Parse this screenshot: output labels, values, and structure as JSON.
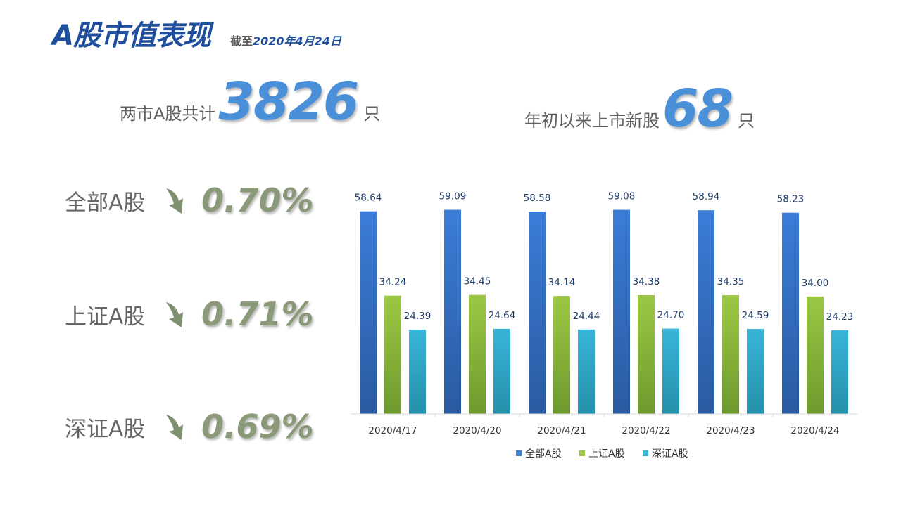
{
  "header": {
    "title": "A股市值表现",
    "subtitle_prefix": "截至",
    "subtitle_date": "2020年4月24日"
  },
  "stats": {
    "total": {
      "label": "两市A股共计",
      "value": "3826",
      "unit": "只"
    },
    "new": {
      "label": "年初以来上市新股",
      "value": "68",
      "unit": "只"
    }
  },
  "changes": [
    {
      "name": "全部A股",
      "value": "0.70%",
      "direction": "down",
      "icon": "down-arrow-icon"
    },
    {
      "name": "上证A股",
      "value": "0.71%",
      "direction": "down",
      "icon": "down-arrow-icon"
    },
    {
      "name": "深证A股",
      "value": "0.69%",
      "direction": "down",
      "icon": "down-arrow-icon"
    }
  ],
  "colors": {
    "title": "#1f4e9c",
    "stat_number": "#4a90d9",
    "change_text": "#8a9a78",
    "arrow": "#7f9070"
  },
  "chart_data": {
    "type": "bar",
    "categories": [
      "2020/4/17",
      "2020/4/20",
      "2020/4/21",
      "2020/4/22",
      "2020/4/23",
      "2020/4/24"
    ],
    "series": [
      {
        "name": "全部A股",
        "values": [
          58.64,
          59.09,
          58.58,
          59.08,
          58.94,
          58.23
        ],
        "color_top": "#3b7dd8",
        "color_bottom": "#2a5aa0"
      },
      {
        "name": "上证A股",
        "values": [
          34.24,
          34.45,
          34.14,
          34.38,
          34.35,
          34.0
        ],
        "color_top": "#9cc744",
        "color_bottom": "#6e9a2e"
      },
      {
        "name": "深证A股",
        "values": [
          24.39,
          24.64,
          24.44,
          24.7,
          24.59,
          24.23
        ],
        "color_top": "#38b4d8",
        "color_bottom": "#2590aa"
      }
    ],
    "value_labels": true,
    "ylim": [
      0,
      60
    ],
    "grid": false,
    "legend": "bottom"
  }
}
